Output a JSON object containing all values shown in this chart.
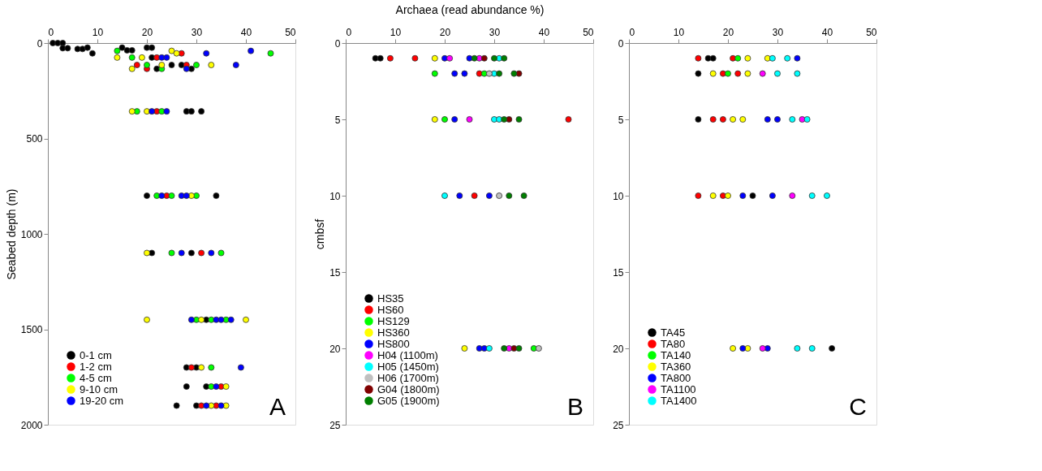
{
  "chart_data": [
    {
      "type": "scatter",
      "ylabel": "Seabed depth (m)",
      "xlim": [
        0,
        50
      ],
      "xticks": [
        0,
        10,
        20,
        30,
        40,
        50
      ],
      "ylim": [
        2000,
        0
      ],
      "yticks": [
        0,
        500,
        1000,
        1500,
        2000
      ],
      "grid": false,
      "legend": "bottom left",
      "marker": "circle",
      "annotations": [
        "A"
      ],
      "series": [
        {
          "name": "0-1 cm",
          "color": "#000000",
          "x": [
            1,
            2,
            3,
            3,
            4,
            6,
            7,
            8,
            9,
            15,
            16,
            17,
            20,
            21,
            21,
            25,
            27,
            22,
            29,
            28,
            29,
            31,
            20,
            34,
            21,
            29,
            32,
            28,
            30,
            28,
            32,
            26,
            30
          ],
          "values": [
            0,
            0,
            0,
            27,
            27,
            31,
            31,
            24,
            54,
            24,
            38,
            38,
            24,
            24,
            76,
            115,
            115,
            135,
            135,
            358,
            358,
            358,
            800,
            800,
            1100,
            1100,
            1450,
            1700,
            1700,
            1800,
            1800,
            1900,
            1900
          ]
        },
        {
          "name": "1-2 cm",
          "color": "#ff0000",
          "x": [
            27,
            22,
            18,
            20,
            28,
            22,
            24,
            31,
            29,
            35,
            31,
            34
          ],
          "values": [
            54,
            76,
            115,
            135,
            115,
            358,
            800,
            1100,
            1700,
            1800,
            1900,
            1900
          ]
        },
        {
          "name": "4-5 cm",
          "color": "#00ff00",
          "x": [
            14,
            17,
            20,
            23,
            30,
            45,
            18,
            23,
            22,
            25,
            30,
            25,
            35,
            30,
            33,
            36,
            33,
            33
          ],
          "values": [
            41,
            76,
            115,
            135,
            115,
            54,
            358,
            358,
            800,
            800,
            800,
            1100,
            1100,
            1450,
            1450,
            1450,
            1700,
            1800
          ]
        },
        {
          "name": "9-10 cm",
          "color": "#ffff00",
          "x": [
            14,
            25,
            26,
            19,
            23,
            17,
            33,
            17,
            20,
            29,
            20,
            20,
            31,
            40,
            31,
            36,
            33,
            36
          ],
          "values": [
            76,
            41,
            54,
            76,
            115,
            135,
            115,
            358,
            358,
            800,
            1100,
            1450,
            1450,
            1450,
            1700,
            1800,
            1900,
            1900
          ]
        },
        {
          "name": "19-20 cm",
          "color": "#0000ff",
          "x": [
            32,
            41,
            23,
            24,
            38,
            28,
            21,
            24,
            23,
            27,
            28,
            27,
            33,
            29,
            34,
            35,
            37,
            39,
            34,
            32,
            35
          ],
          "values": [
            54,
            41,
            76,
            76,
            115,
            135,
            358,
            358,
            800,
            800,
            800,
            1100,
            1100,
            1450,
            1450,
            1450,
            1450,
            1700,
            1800,
            1900,
            1900
          ]
        }
      ]
    },
    {
      "type": "scatter",
      "xlabel": "Archaea (read abundance %)",
      "ylabel": "cmbsf",
      "xlim": [
        0,
        50
      ],
      "xticks": [
        0,
        10,
        20,
        30,
        40,
        50
      ],
      "ylim": [
        25,
        0
      ],
      "yticks": [
        0,
        5,
        10,
        15,
        20,
        25
      ],
      "grid": false,
      "legend": "bottom left",
      "marker": "circle",
      "annotations": [
        "B"
      ],
      "series": [
        {
          "name": "HS35",
          "color": "#000000",
          "x": [
            6,
            7
          ],
          "values": [
            1,
            1
          ]
        },
        {
          "name": "HS60",
          "color": "#ff0000",
          "x": [
            9,
            14,
            27,
            45,
            26
          ],
          "values": [
            1,
            1,
            2,
            5,
            10
          ]
        },
        {
          "name": "HS129",
          "color": "#00ff00",
          "x": [
            18,
            28,
            20,
            38
          ],
          "values": [
            2,
            2,
            5,
            20
          ]
        },
        {
          "name": "HS360",
          "color": "#ffff00",
          "x": [
            18,
            18,
            24
          ],
          "values": [
            1,
            5,
            20
          ]
        },
        {
          "name": "HS800",
          "color": "#0000ff",
          "x": [
            20,
            25,
            22,
            24,
            22,
            23,
            29,
            27,
            28
          ],
          "values": [
            1,
            1,
            2,
            2,
            5,
            10,
            10,
            20,
            20
          ]
        },
        {
          "name": "H04 (1100m)",
          "color": "#ff00ff",
          "x": [
            21,
            27,
            25,
            33
          ],
          "values": [
            1,
            1,
            5,
            20
          ]
        },
        {
          "name": "H05 (1450m)",
          "color": "#00ffff",
          "x": [
            31,
            30,
            30,
            31,
            20,
            29
          ],
          "values": [
            1,
            2,
            5,
            5,
            10,
            20
          ]
        },
        {
          "name": "H06 (1700m)",
          "color": "#c0c0c0",
          "x": [
            29,
            31,
            39
          ],
          "values": [
            2,
            10,
            20
          ]
        },
        {
          "name": "G04 (1800m)",
          "color": "#800000",
          "x": [
            28,
            35,
            33,
            34
          ],
          "values": [
            1,
            2,
            5,
            20
          ]
        },
        {
          "name": "G05 (1900m)",
          "color": "#007f00",
          "x": [
            26,
            30,
            32,
            31,
            34,
            32,
            35,
            33,
            36,
            32,
            35
          ],
          "values": [
            1,
            1,
            1,
            2,
            2,
            5,
            5,
            10,
            10,
            20,
            20
          ]
        }
      ]
    },
    {
      "type": "scatter",
      "xlim": [
        0,
        50
      ],
      "xticks": [
        0,
        10,
        20,
        30,
        40,
        50
      ],
      "ylim": [
        25,
        0
      ],
      "yticks": [
        0,
        5,
        10,
        15,
        20,
        25
      ],
      "grid": false,
      "legend": "bottom left",
      "marker": "circle",
      "annotations": [
        "C"
      ],
      "series": [
        {
          "name": "TA45",
          "color": "#000000",
          "x": [
            16,
            17,
            14,
            14,
            25,
            41
          ],
          "values": [
            1,
            1,
            2,
            5,
            10,
            20
          ]
        },
        {
          "name": "TA80",
          "color": "#ff0000",
          "x": [
            14,
            21,
            19,
            22,
            17,
            19,
            14,
            19
          ],
          "values": [
            1,
            1,
            2,
            2,
            5,
            5,
            10,
            10
          ]
        },
        {
          "name": "TA140",
          "color": "#00ff00",
          "x": [
            22,
            20
          ],
          "values": [
            1,
            2
          ]
        },
        {
          "name": "TA360",
          "color": "#ffff00",
          "x": [
            24,
            28,
            17,
            24,
            21,
            23,
            17,
            20,
            21,
            24
          ],
          "values": [
            1,
            1,
            2,
            2,
            5,
            5,
            10,
            10,
            20,
            20
          ]
        },
        {
          "name": "TA800",
          "color": "#0000ff",
          "x": [
            34,
            28,
            30,
            23,
            29,
            23,
            28
          ],
          "values": [
            1,
            5,
            5,
            10,
            10,
            20,
            20
          ]
        },
        {
          "name": "TA1100",
          "color": "#ff00ff",
          "x": [
            27,
            35,
            33,
            27
          ],
          "values": [
            2,
            5,
            10,
            20
          ]
        },
        {
          "name": "TA1400",
          "color": "#00ffff",
          "x": [
            29,
            32,
            30,
            34,
            33,
            36,
            37,
            40,
            34,
            37
          ],
          "values": [
            1,
            1,
            2,
            2,
            5,
            5,
            10,
            10,
            20,
            20
          ]
        }
      ]
    }
  ]
}
